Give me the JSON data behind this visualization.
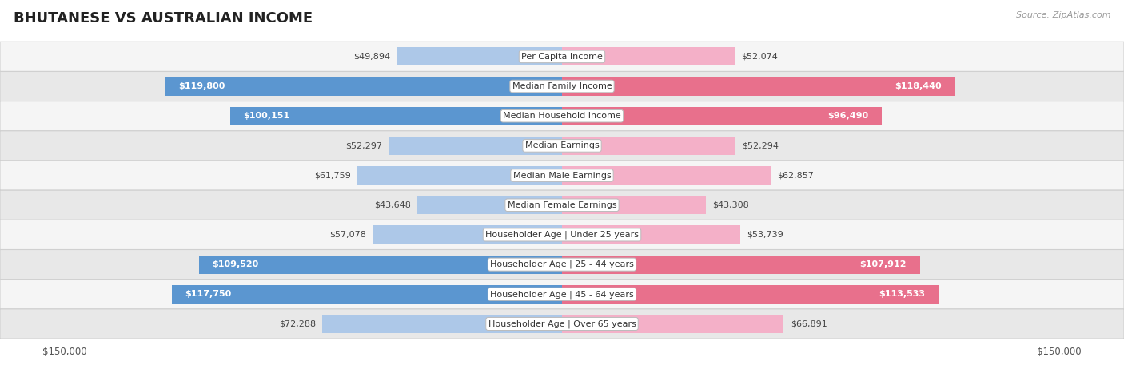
{
  "title": "BHUTANESE VS AUSTRALIAN INCOME",
  "source": "Source: ZipAtlas.com",
  "categories": [
    "Per Capita Income",
    "Median Family Income",
    "Median Household Income",
    "Median Earnings",
    "Median Male Earnings",
    "Median Female Earnings",
    "Householder Age | Under 25 years",
    "Householder Age | 25 - 44 years",
    "Householder Age | 45 - 64 years",
    "Householder Age | Over 65 years"
  ],
  "bhutanese_values": [
    49894,
    119800,
    100151,
    52297,
    61759,
    43648,
    57078,
    109520,
    117750,
    72288
  ],
  "australian_values": [
    52074,
    118440,
    96490,
    52294,
    62857,
    43308,
    53739,
    107912,
    113533,
    66891
  ],
  "bhutanese_labels": [
    "$49,894",
    "$119,800",
    "$100,151",
    "$52,297",
    "$61,759",
    "$43,648",
    "$57,078",
    "$109,520",
    "$117,750",
    "$72,288"
  ],
  "australian_labels": [
    "$52,074",
    "$118,440",
    "$96,490",
    "$52,294",
    "$62,857",
    "$43,308",
    "$53,739",
    "$107,912",
    "$113,533",
    "$66,891"
  ],
  "max_value": 150000,
  "bhutanese_color_light": "#adc8e8",
  "bhutanese_color_dark": "#5b96d0",
  "australian_color_light": "#f4b0c8",
  "australian_color_dark": "#e8708c",
  "background_color": "#ffffff",
  "row_light": "#f5f5f5",
  "row_dark": "#e8e8e8",
  "label_threshold": 80000,
  "title_fontsize": 13,
  "label_fontsize": 8,
  "category_fontsize": 8
}
